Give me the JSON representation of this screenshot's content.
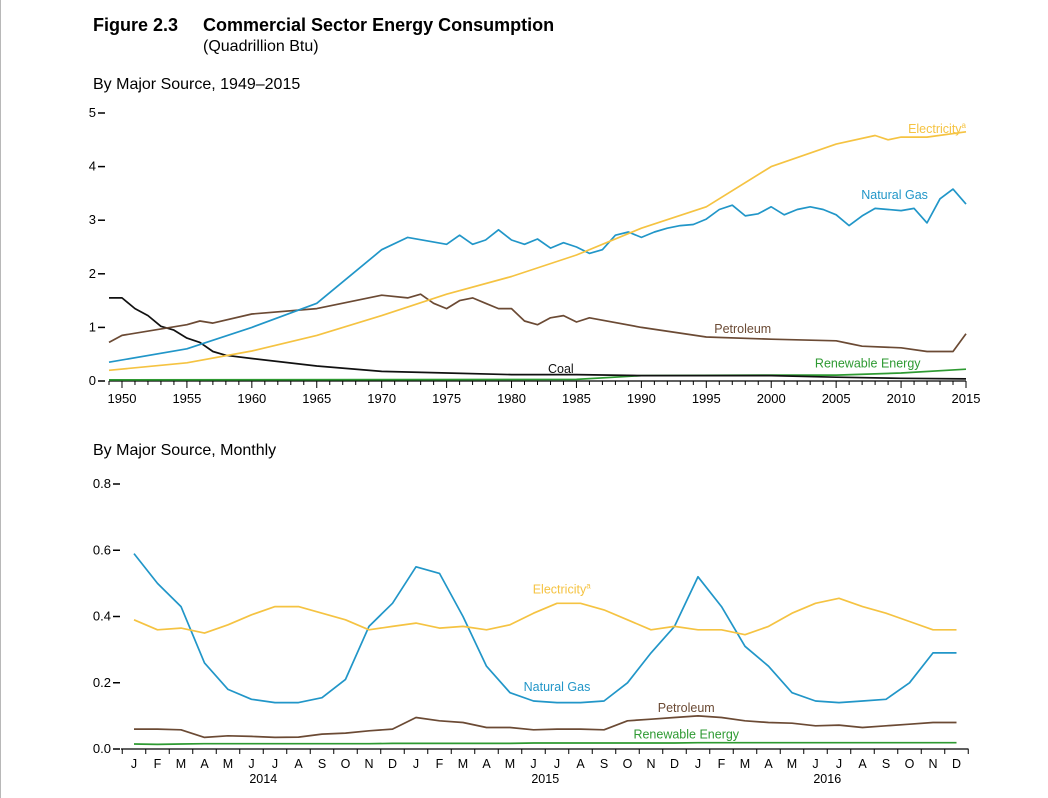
{
  "figure": {
    "number": "Figure 2.3",
    "title": "Commercial Sector Energy Consumption",
    "subtitle": "(Quadrillion Btu)"
  },
  "colors": {
    "electricity": "#f5c342",
    "natural_gas": "#2196c8",
    "petroleum": "#6b4a34",
    "coal": "#111111",
    "renewable": "#2e9a32"
  },
  "chart_data": [
    {
      "type": "line",
      "title": "By Major Source, 1949–2015",
      "xlim": [
        1949,
        2015
      ],
      "ylim": [
        0,
        5
      ],
      "yticks": [
        0,
        1,
        2,
        3,
        4,
        5
      ],
      "xticks": [
        1950,
        1955,
        1960,
        1965,
        1970,
        1975,
        1980,
        1985,
        1990,
        1995,
        2000,
        2005,
        2010,
        2015
      ],
      "grid": false,
      "series": [
        {
          "name": "Electricity",
          "sup": "a",
          "key": "electricity",
          "x": [
            1949,
            1955,
            1960,
            1965,
            1970,
            1975,
            1980,
            1985,
            1990,
            1995,
            2000,
            2005,
            2008,
            2009,
            2010,
            2012,
            2015
          ],
          "values": [
            0.2,
            0.34,
            0.56,
            0.85,
            1.22,
            1.62,
            1.95,
            2.35,
            2.85,
            3.25,
            4.0,
            4.42,
            4.58,
            4.5,
            4.55,
            4.55,
            4.65
          ]
        },
        {
          "name": "Natural Gas",
          "key": "natural_gas",
          "x": [
            1949,
            1955,
            1960,
            1965,
            1970,
            1972,
            1975,
            1976,
            1977,
            1978,
            1979,
            1980,
            1981,
            1982,
            1983,
            1984,
            1985,
            1986,
            1987,
            1988,
            1989,
            1990,
            1991,
            1992,
            1993,
            1994,
            1995,
            1996,
            1997,
            1998,
            1999,
            2000,
            2001,
            2002,
            2003,
            2004,
            2005,
            2006,
            2007,
            2008,
            2009,
            2010,
            2011,
            2012,
            2013,
            2014,
            2015
          ],
          "values": [
            0.35,
            0.6,
            1.0,
            1.45,
            2.45,
            2.68,
            2.55,
            2.72,
            2.55,
            2.63,
            2.82,
            2.63,
            2.55,
            2.65,
            2.48,
            2.58,
            2.5,
            2.38,
            2.45,
            2.72,
            2.78,
            2.68,
            2.78,
            2.85,
            2.9,
            2.92,
            3.02,
            3.2,
            3.28,
            3.08,
            3.12,
            3.25,
            3.1,
            3.2,
            3.25,
            3.2,
            3.1,
            2.9,
            3.08,
            3.22,
            3.2,
            3.18,
            3.22,
            2.95,
            3.4,
            3.58,
            3.3
          ]
        },
        {
          "name": "Petroleum",
          "key": "petroleum",
          "x": [
            1949,
            1950,
            1955,
            1956,
            1957,
            1960,
            1965,
            1970,
            1972,
            1973,
            1974,
            1975,
            1976,
            1977,
            1978,
            1979,
            1980,
            1981,
            1982,
            1983,
            1984,
            1985,
            1986,
            1990,
            1995,
            2000,
            2005,
            2006,
            2007,
            2010,
            2012,
            2014,
            2015
          ],
          "values": [
            0.72,
            0.85,
            1.05,
            1.12,
            1.08,
            1.25,
            1.35,
            1.6,
            1.55,
            1.62,
            1.45,
            1.35,
            1.5,
            1.55,
            1.45,
            1.35,
            1.35,
            1.12,
            1.05,
            1.18,
            1.22,
            1.1,
            1.18,
            1.0,
            0.82,
            0.78,
            0.75,
            0.7,
            0.65,
            0.62,
            0.55,
            0.55,
            0.88
          ]
        },
        {
          "name": "Coal",
          "key": "coal",
          "x": [
            1949,
            1950,
            1951,
            1952,
            1953,
            1954,
            1955,
            1956,
            1957,
            1958,
            1960,
            1965,
            1970,
            1975,
            1980,
            1985,
            1990,
            1995,
            2000,
            2005,
            2010,
            2015
          ],
          "values": [
            1.55,
            1.55,
            1.35,
            1.22,
            1.02,
            0.95,
            0.8,
            0.72,
            0.55,
            0.48,
            0.42,
            0.28,
            0.18,
            0.15,
            0.12,
            0.12,
            0.1,
            0.1,
            0.1,
            0.07,
            0.05,
            0.04
          ]
        },
        {
          "name": "Renewable Energy",
          "key": "renewable",
          "x": [
            1949,
            1985,
            1990,
            2000,
            2005,
            2010,
            2015
          ],
          "values": [
            0.02,
            0.03,
            0.1,
            0.11,
            0.11,
            0.15,
            0.22
          ]
        }
      ],
      "annotations": [
        "Coal"
      ]
    },
    {
      "type": "line",
      "title": "By Major Source, Monthly",
      "ylim": [
        0,
        0.8
      ],
      "yticks": [
        "0.0",
        "0.2",
        "0.4",
        "0.6",
        "0.8"
      ],
      "categories": [
        "J",
        "F",
        "M",
        "A",
        "M",
        "J",
        "J",
        "A",
        "S",
        "O",
        "N",
        "D",
        "J",
        "F",
        "M",
        "A",
        "M",
        "J",
        "J",
        "A",
        "S",
        "O",
        "N",
        "D",
        "J",
        "F",
        "M",
        "A",
        "M",
        "J",
        "J",
        "A",
        "S",
        "O",
        "N",
        "D"
      ],
      "years": [
        {
          "label": "2014",
          "index": 5.5
        },
        {
          "label": "2015",
          "index": 17.5
        },
        {
          "label": "2016",
          "index": 29.5
        }
      ],
      "grid": false,
      "series": [
        {
          "name": "Electricity",
          "sup": "a",
          "key": "electricity",
          "values": [
            0.39,
            0.36,
            0.365,
            0.35,
            0.375,
            0.405,
            0.43,
            0.43,
            0.41,
            0.39,
            0.36,
            0.37,
            0.38,
            0.365,
            0.37,
            0.36,
            0.375,
            0.41,
            0.44,
            0.44,
            0.42,
            0.39,
            0.36,
            0.37,
            0.36,
            0.36,
            0.345,
            0.37,
            0.41,
            0.44,
            0.455,
            0.43,
            0.41,
            0.385,
            0.36,
            0.36
          ]
        },
        {
          "name": "Natural Gas",
          "key": "natural_gas",
          "values": [
            0.59,
            0.5,
            0.43,
            0.26,
            0.18,
            0.15,
            0.14,
            0.14,
            0.155,
            0.21,
            0.37,
            0.44,
            0.55,
            0.53,
            0.4,
            0.25,
            0.17,
            0.145,
            0.14,
            0.14,
            0.145,
            0.2,
            0.29,
            0.37,
            0.52,
            0.43,
            0.31,
            0.25,
            0.17,
            0.145,
            0.14,
            0.145,
            0.15,
            0.2,
            0.29,
            0.29
          ]
        },
        {
          "name": "Petroleum",
          "key": "petroleum",
          "values": [
            0.06,
            0.06,
            0.058,
            0.035,
            0.04,
            0.038,
            0.035,
            0.036,
            0.045,
            0.048,
            0.055,
            0.06,
            0.095,
            0.085,
            0.08,
            0.065,
            0.065,
            0.058,
            0.06,
            0.06,
            0.058,
            0.085,
            0.09,
            0.095,
            0.1,
            0.095,
            0.085,
            0.08,
            0.078,
            0.07,
            0.072,
            0.065,
            0.07,
            0.075,
            0.08,
            0.08
          ]
        },
        {
          "name": "Renewable Energy",
          "key": "renewable",
          "values": [
            0.015,
            0.014,
            0.015,
            0.016,
            0.016,
            0.016,
            0.016,
            0.016,
            0.016,
            0.016,
            0.016,
            0.017,
            0.017,
            0.017,
            0.017,
            0.017,
            0.017,
            0.018,
            0.018,
            0.018,
            0.018,
            0.018,
            0.018,
            0.018,
            0.019,
            0.019,
            0.019,
            0.019,
            0.019,
            0.019,
            0.019,
            0.019,
            0.019,
            0.019,
            0.019,
            0.019
          ]
        }
      ]
    }
  ]
}
